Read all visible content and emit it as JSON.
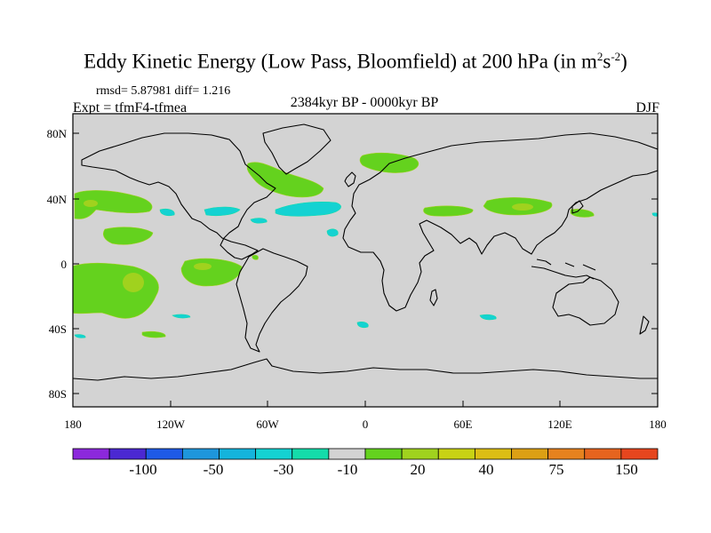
{
  "title": {
    "main": "Eddy Kinetic Energy (Low Pass, Bloomfield) at 200 hPa (in m",
    "sup1": "2",
    "mid": "s",
    "sup2": "-2",
    "close": ")"
  },
  "stats": "rmsd= 5.87981 diff= 1.216",
  "experiment": "Expt = tfmF4-tfmea",
  "period": "2384kyr BP - 0000kyr BP",
  "season": "DJF",
  "map": {
    "background_color": "#d3d3d3",
    "lat_labels": [
      "80N",
      "40N",
      "0",
      "40S",
      "80S"
    ],
    "lon_labels": [
      "180",
      "120W",
      "60W",
      "0",
      "60E",
      "120E",
      "180"
    ]
  },
  "colorbar": {
    "colors": [
      "#8c28dc",
      "#4b28d2",
      "#1e5ae6",
      "#1e96dc",
      "#14b4dc",
      "#14d2d2",
      "#14dcaa",
      "#d3d3d3",
      "#64d21e",
      "#a0d21e",
      "#c8d214",
      "#dcbe14",
      "#dca014",
      "#e6821e",
      "#e6641e",
      "#e6461e"
    ],
    "labels": [
      "-100",
      "-50",
      "-30",
      "-10",
      "20",
      "40",
      "75",
      "150"
    ]
  }
}
